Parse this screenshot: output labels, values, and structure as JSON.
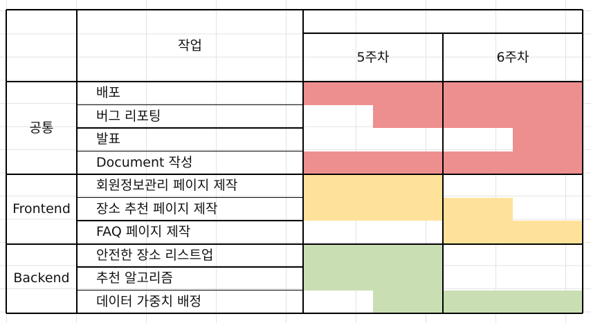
{
  "colors": {
    "common": "#ee8f8f",
    "frontend": "#ffe29a",
    "backend": "#c9dfb3",
    "grid": "#e3e3e3",
    "border": "#000000"
  },
  "header": {
    "task": "작업",
    "weeks": [
      "5주차",
      "6주차"
    ]
  },
  "groups": [
    {
      "name": "공통",
      "color_key": "common",
      "tasks": [
        {
          "label": "배포",
          "fill": [
            1,
            1,
            1,
            1
          ]
        },
        {
          "label": "버그 리포팅",
          "fill": [
            0,
            1,
            1,
            1
          ]
        },
        {
          "label": "발표",
          "fill": [
            0,
            0,
            0,
            1
          ]
        },
        {
          "label": "Document 작성",
          "fill": [
            1,
            1,
            1,
            1
          ]
        }
      ]
    },
    {
      "name": "Frontend",
      "color_key": "frontend",
      "tasks": [
        {
          "label": "회원정보관리 페이지 제작",
          "fill": [
            1,
            1,
            0,
            0
          ]
        },
        {
          "label": "장소 추천 페이지 제작",
          "fill": [
            1,
            1,
            1,
            0
          ]
        },
        {
          "label": "FAQ 페이지 제작",
          "fill": [
            0,
            0,
            1,
            1
          ]
        }
      ]
    },
    {
      "name": "Backend",
      "color_key": "backend",
      "tasks": [
        {
          "label": "안전한 장소 리스트업",
          "fill": [
            1,
            1,
            0,
            0
          ]
        },
        {
          "label": "추천 알고리즘",
          "fill": [
            1,
            1,
            0,
            0
          ]
        },
        {
          "label": "데이터 가중치 배정",
          "fill": [
            0,
            1,
            1,
            1
          ]
        }
      ]
    }
  ]
}
